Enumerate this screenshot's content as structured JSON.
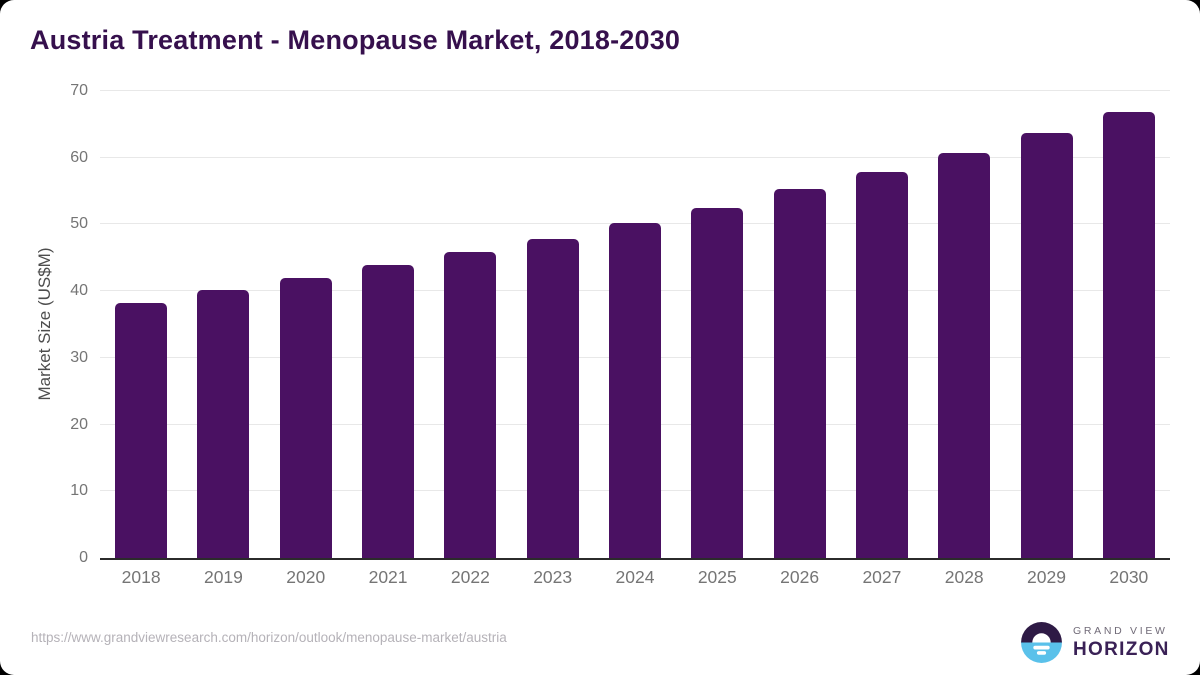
{
  "card": {
    "title": "Austria Treatment - Menopause Market, 2018-2030",
    "source_url": "https://www.grandviewresearch.com/horizon/outlook/menopause-market/austria"
  },
  "chart_data": {
    "type": "bar",
    "title": "Austria Treatment - Menopause Market, 2018-2030",
    "categories": [
      "2018",
      "2019",
      "2020",
      "2021",
      "2022",
      "2023",
      "2024",
      "2025",
      "2026",
      "2027",
      "2028",
      "2029",
      "2030"
    ],
    "values": [
      38.2,
      40.1,
      42.0,
      43.9,
      45.9,
      47.8,
      50.2,
      52.5,
      55.3,
      57.9,
      60.7,
      63.7,
      66.9
    ],
    "xlabel": "",
    "ylabel": "Market Size (US$M)",
    "ylim": [
      0,
      70
    ],
    "yticks": [
      0,
      10,
      20,
      30,
      40,
      50,
      60,
      70
    ],
    "grid": true,
    "legend": false,
    "bar_color": "#4a1162"
  },
  "logo": {
    "line1": "GRAND VIEW",
    "line2": "HORIZON",
    "icon": "sun-over-horizon-circle"
  },
  "colors": {
    "bar": "#4a1162",
    "title": "#36104d",
    "axis_text": "#757575",
    "grid": "#e8e8e8",
    "axis_line": "#2b2b2b",
    "url_text": "#b5b2b8",
    "logo_circle_purple": "#2e1a45",
    "logo_circle_blue": "#5ac1ea",
    "logo_text_gray": "#716b78",
    "logo_text_purple": "#3a2156"
  }
}
